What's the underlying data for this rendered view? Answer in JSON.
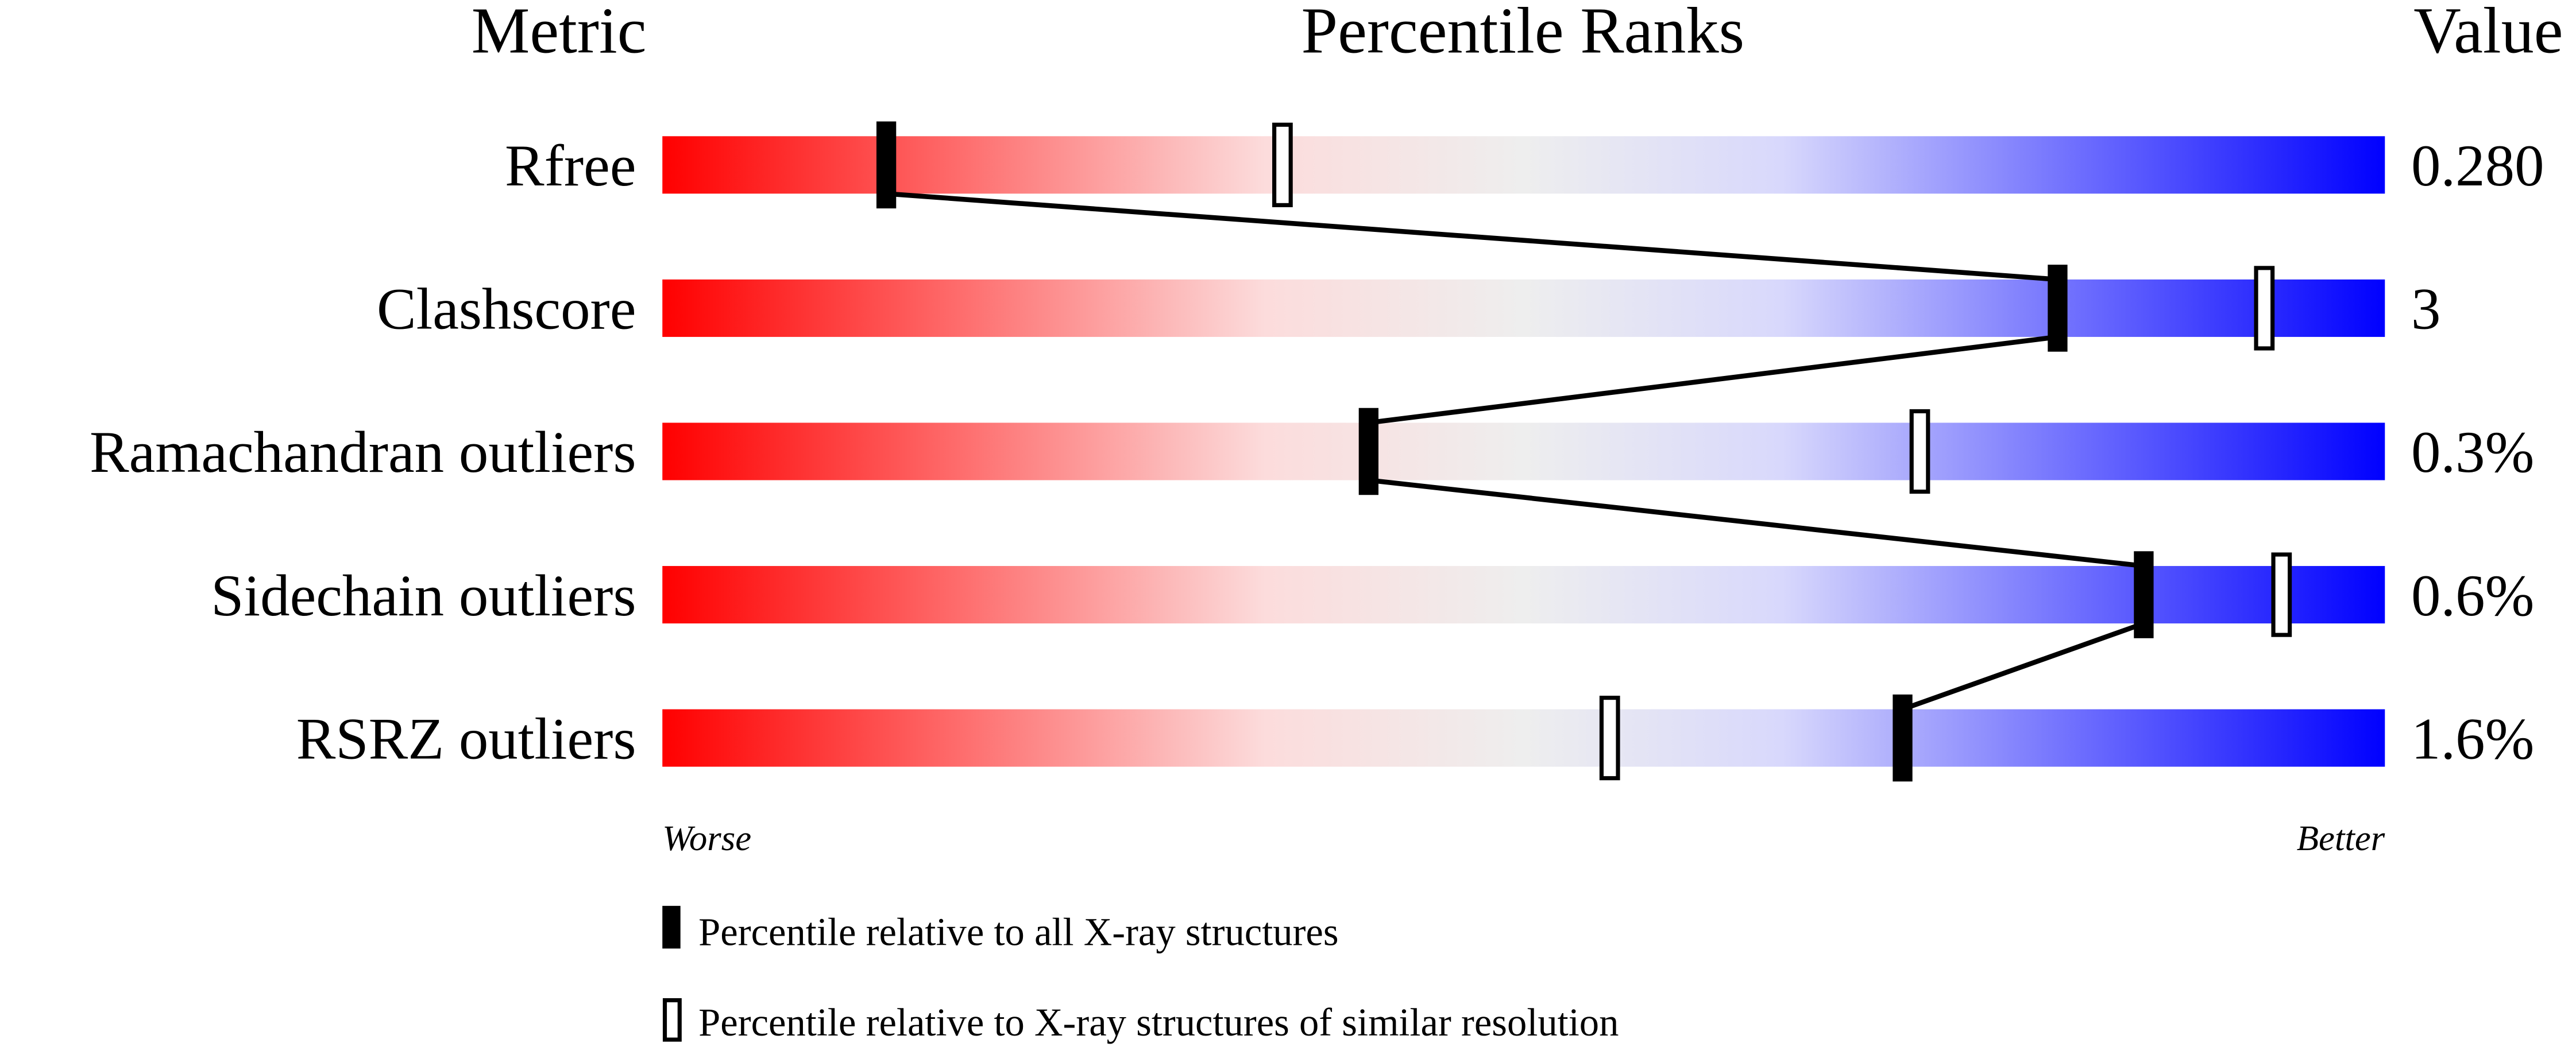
{
  "chart_data": {
    "type": "percentile-slider",
    "headers": {
      "metric": "Metric",
      "ranks": "Percentile Ranks",
      "value": "Value"
    },
    "xlim": [
      0,
      100
    ],
    "axis_labels": {
      "left": "Worse",
      "right": "Better"
    },
    "gradient_colors": [
      "#ff0000",
      "#fcdcdc",
      "#eeeeee",
      "#d8d8fc",
      "#0000ff"
    ],
    "metrics": [
      {
        "name": "Rfree",
        "value": "0.280",
        "percentile_all": 13,
        "percentile_similar": 36
      },
      {
        "name": "Clashscore",
        "value": "3",
        "percentile_all": 81,
        "percentile_similar": 93
      },
      {
        "name": "Ramachandran outliers",
        "value": "0.3%",
        "percentile_all": 41,
        "percentile_similar": 73
      },
      {
        "name": "Sidechain outliers",
        "value": "0.6%",
        "percentile_all": 86,
        "percentile_similar": 94
      },
      {
        "name": "RSRZ outliers",
        "value": "1.6%",
        "percentile_all": 72,
        "percentile_similar": 55
      }
    ],
    "legend": [
      {
        "marker": "filled",
        "label": "Percentile relative to all X-ray structures"
      },
      {
        "marker": "open",
        "label": "Percentile relative to X-ray structures of similar resolution"
      }
    ]
  }
}
